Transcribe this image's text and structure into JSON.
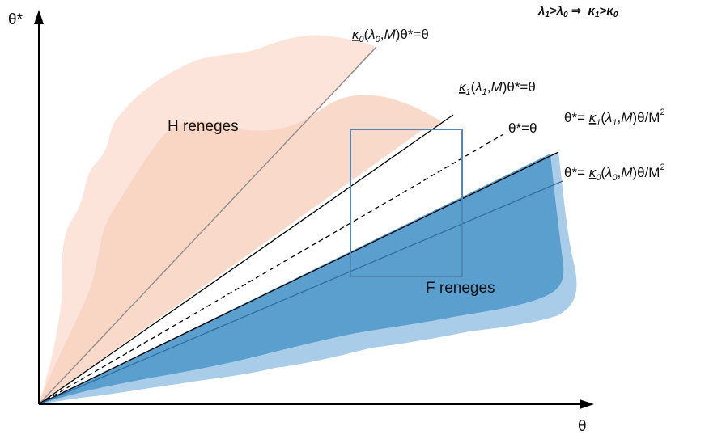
{
  "axes": {
    "y_label": "θ*",
    "x_label": "θ"
  },
  "header_note": {
    "lambda1": "λ",
    "sub1": "1",
    "gt": ">",
    "lambda0": "λ",
    "sub0": "0",
    "implies": " ⇒ ",
    "kappa1": "κ",
    "k_sub1": "1",
    "kappa0": "κ",
    "k_sub0": "0"
  },
  "regions": {
    "h_reneges": "H reneges",
    "f_reneges": "F reneges"
  },
  "lines": {
    "k0_upper": {
      "kappa": "κ",
      "sub": "0",
      "open": "(",
      "lambda": "λ",
      "lsub": "0",
      "mid": ",",
      "M": "M",
      "rest": ")θ*=θ"
    },
    "k1_upper": {
      "kappa": "κ",
      "sub": "1",
      "open": "(",
      "lambda": "λ",
      "lsub": "1",
      "mid": ",",
      "M": "M",
      "rest": ")θ*=θ"
    },
    "diagonal": "θ*=θ",
    "k1_lower": {
      "prefix": "θ*= ",
      "kappa": "κ",
      "sub": "1",
      "open": "(",
      "lambda": "λ",
      "lsub": "1",
      "mid": ",",
      "M": "M",
      "rest": ")θ/M",
      "sup": "2"
    },
    "k0_lower": {
      "prefix": "θ*= ",
      "kappa": "κ",
      "sub": "0",
      "open": "(",
      "lambda": "λ",
      "lsub": "0",
      "mid": ",",
      "M": "M",
      "rest": ")θ/M",
      "sup": "2"
    }
  },
  "colors": {
    "salmon_light": "#fbe1d7",
    "salmon": "#f6cbb8",
    "blue_light": "#a9cde8",
    "blue": "#5b9fcf",
    "box": "#4f87b5",
    "axis": "#000000"
  }
}
